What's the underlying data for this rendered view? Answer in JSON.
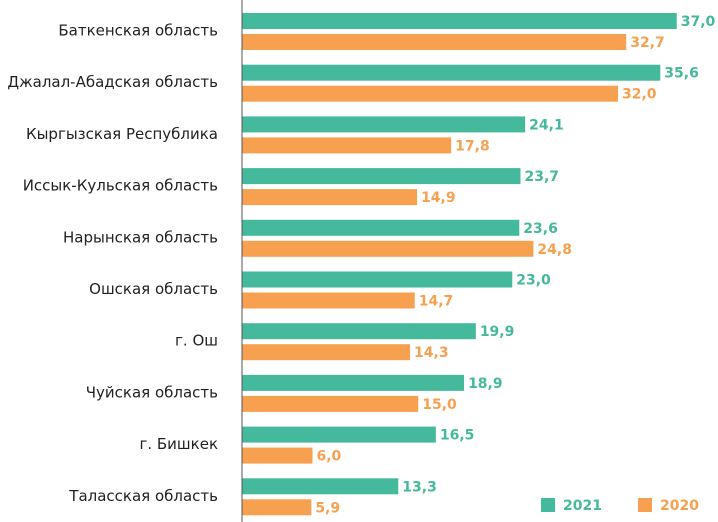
{
  "chart_data": {
    "type": "barh",
    "categories": [
      "Баткенская область",
      "Джалал-Абадская область",
      "Кыргызская Республика",
      "Иссык-Кульская область",
      "Нарынская область",
      "Ошская область",
      "г. Ош",
      "Чуйская область",
      "г. Бишкек",
      "Таласская область"
    ],
    "series": [
      {
        "name": "2021",
        "color": "#45b99c",
        "values": [
          37.0,
          35.6,
          24.1,
          23.7,
          23.6,
          23.0,
          19.9,
          18.9,
          16.5,
          13.3
        ],
        "value_labels": [
          "37,0",
          "35,6",
          "24,1",
          "23,7",
          "23,6",
          "23,0",
          "19,9",
          "18,9",
          "16,5",
          "13,3"
        ]
      },
      {
        "name": "2020",
        "color": "#f7a04f",
        "values": [
          32.7,
          32.0,
          17.8,
          14.9,
          24.8,
          14.7,
          14.3,
          15.0,
          6.0,
          5.9
        ],
        "value_labels": [
          "32,7",
          "32,0",
          "17,8",
          "14,9",
          "24,8",
          "14,7",
          "14,3",
          "15,0",
          "6,0",
          "5,9"
        ]
      }
    ],
    "xlim": [
      0,
      40
    ],
    "legend": "bottom-right"
  }
}
